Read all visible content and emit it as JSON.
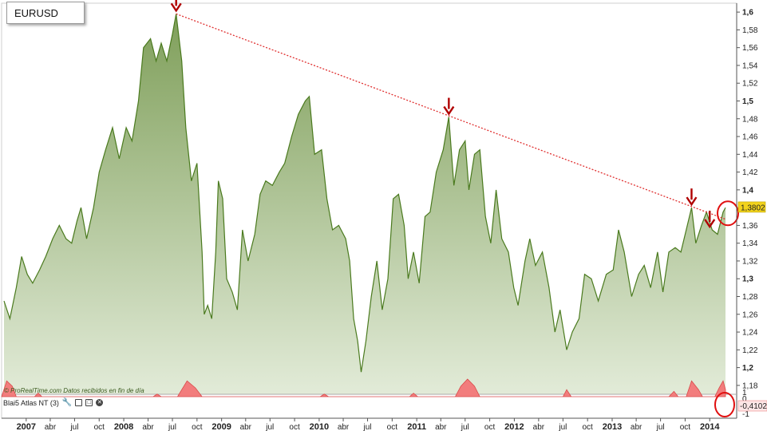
{
  "symbol": "EURUSD",
  "credit": "© ProRealTime.com  Datos recibidos en fin de día",
  "indicator": {
    "label": "Blai5 Atlas NT (3)",
    "value_label": "-0,4102",
    "axis_labels": [
      "1",
      "0",
      "-1"
    ],
    "icons": [
      "wrench-icon",
      "window-icon",
      "maximize-icon",
      "close-icon"
    ]
  },
  "chart_data": {
    "type": "area",
    "title": "EURUSD",
    "last_value_label": "1,3802",
    "colors": {
      "area_top": "#7f9f5a",
      "area_bottom": "#e2ebd8",
      "line": "#4a7a1e",
      "trendline": "#e03030",
      "arrow": "#b00000",
      "circle": "#e01010",
      "indicator_fill": "#f27d7d",
      "value_badge": "#f2d31b"
    },
    "ylim": [
      1.17,
      1.61
    ],
    "y_ticks": [
      {
        "v": 1.6,
        "label": "1,6",
        "bold": true
      },
      {
        "v": 1.58,
        "label": "1,58"
      },
      {
        "v": 1.56,
        "label": "1,56"
      },
      {
        "v": 1.54,
        "label": "1,54"
      },
      {
        "v": 1.52,
        "label": "1,52"
      },
      {
        "v": 1.5,
        "label": "1,5",
        "bold": true
      },
      {
        "v": 1.48,
        "label": "1,48"
      },
      {
        "v": 1.46,
        "label": "1,46"
      },
      {
        "v": 1.44,
        "label": "1,44"
      },
      {
        "v": 1.42,
        "label": "1,42"
      },
      {
        "v": 1.4,
        "label": "1,4",
        "bold": true
      },
      {
        "v": 1.36,
        "label": "1,36"
      },
      {
        "v": 1.34,
        "label": "1,34"
      },
      {
        "v": 1.32,
        "label": "1,32"
      },
      {
        "v": 1.3,
        "label": "1,3",
        "bold": true
      },
      {
        "v": 1.28,
        "label": "1,28"
      },
      {
        "v": 1.26,
        "label": "1,26"
      },
      {
        "v": 1.24,
        "label": "1,24"
      },
      {
        "v": 1.22,
        "label": "1,22"
      },
      {
        "v": 1.2,
        "label": "1,2",
        "bold": true
      },
      {
        "v": 1.18,
        "label": "1,18"
      }
    ],
    "x_range": [
      "2006-10",
      "2014-03"
    ],
    "x_ticks": [
      {
        "date": "2007-01",
        "label": "2007",
        "bold": true
      },
      {
        "date": "2007-04",
        "label": "abr"
      },
      {
        "date": "2007-07",
        "label": "jul"
      },
      {
        "date": "2007-10",
        "label": "oct"
      },
      {
        "date": "2008-01",
        "label": "2008",
        "bold": true
      },
      {
        "date": "2008-04",
        "label": "abr"
      },
      {
        "date": "2008-07",
        "label": "jul"
      },
      {
        "date": "2008-10",
        "label": "oct"
      },
      {
        "date": "2009-01",
        "label": "2009",
        "bold": true
      },
      {
        "date": "2009-04",
        "label": "abr"
      },
      {
        "date": "2009-07",
        "label": "jul"
      },
      {
        "date": "2009-10",
        "label": "oct"
      },
      {
        "date": "2010-01",
        "label": "2010",
        "bold": true
      },
      {
        "date": "2010-04",
        "label": "abr"
      },
      {
        "date": "2010-07",
        "label": "jul"
      },
      {
        "date": "2010-10",
        "label": "oct"
      },
      {
        "date": "2011-01",
        "label": "2011",
        "bold": true
      },
      {
        "date": "2011-04",
        "label": "abr"
      },
      {
        "date": "2011-07",
        "label": "jul"
      },
      {
        "date": "2011-10",
        "label": "oct"
      },
      {
        "date": "2012-01",
        "label": "2012",
        "bold": true
      },
      {
        "date": "2012-04",
        "label": "abr"
      },
      {
        "date": "2012-07",
        "label": "jul"
      },
      {
        "date": "2012-10",
        "label": "oct"
      },
      {
        "date": "2013-01",
        "label": "2013",
        "bold": true
      },
      {
        "date": "2013-04",
        "label": "abr"
      },
      {
        "date": "2013-07",
        "label": "jul"
      },
      {
        "date": "2013-10",
        "label": "oct"
      },
      {
        "date": "2014-01",
        "label": "2014",
        "bold": true
      }
    ],
    "series": [
      {
        "points": [
          [
            "2006-10-10",
            1.275
          ],
          [
            "2006-11-01",
            1.255
          ],
          [
            "2006-11-25",
            1.29
          ],
          [
            "2006-12-15",
            1.325
          ],
          [
            "2007-01-05",
            1.305
          ],
          [
            "2007-01-25",
            1.295
          ],
          [
            "2007-02-20",
            1.31
          ],
          [
            "2007-03-15",
            1.325
          ],
          [
            "2007-04-10",
            1.345
          ],
          [
            "2007-05-05",
            1.36
          ],
          [
            "2007-05-30",
            1.345
          ],
          [
            "2007-06-20",
            1.34
          ],
          [
            "2007-07-10",
            1.365
          ],
          [
            "2007-07-25",
            1.38
          ],
          [
            "2007-08-15",
            1.345
          ],
          [
            "2007-09-10",
            1.38
          ],
          [
            "2007-10-01",
            1.42
          ],
          [
            "2007-10-25",
            1.445
          ],
          [
            "2007-11-20",
            1.47
          ],
          [
            "2007-12-15",
            1.435
          ],
          [
            "2008-01-10",
            1.47
          ],
          [
            "2008-02-01",
            1.455
          ],
          [
            "2008-02-25",
            1.5
          ],
          [
            "2008-03-15",
            1.56
          ],
          [
            "2008-04-10",
            1.57
          ],
          [
            "2008-05-01",
            1.545
          ],
          [
            "2008-05-20",
            1.565
          ],
          [
            "2008-06-10",
            1.545
          ],
          [
            "2008-07-01",
            1.575
          ],
          [
            "2008-07-15",
            1.598
          ],
          [
            "2008-08-05",
            1.545
          ],
          [
            "2008-08-20",
            1.47
          ],
          [
            "2008-09-10",
            1.41
          ],
          [
            "2008-10-01",
            1.43
          ],
          [
            "2008-10-20",
            1.33
          ],
          [
            "2008-10-28",
            1.26
          ],
          [
            "2008-11-10",
            1.27
          ],
          [
            "2008-11-25",
            1.255
          ],
          [
            "2008-12-10",
            1.33
          ],
          [
            "2008-12-20",
            1.41
          ],
          [
            "2009-01-05",
            1.39
          ],
          [
            "2009-01-20",
            1.3
          ],
          [
            "2009-02-10",
            1.285
          ],
          [
            "2009-03-01",
            1.265
          ],
          [
            "2009-03-20",
            1.355
          ],
          [
            "2009-04-10",
            1.32
          ],
          [
            "2009-05-05",
            1.35
          ],
          [
            "2009-05-25",
            1.395
          ],
          [
            "2009-06-15",
            1.41
          ],
          [
            "2009-07-10",
            1.405
          ],
          [
            "2009-08-05",
            1.42
          ],
          [
            "2009-08-25",
            1.43
          ],
          [
            "2009-09-20",
            1.46
          ],
          [
            "2009-10-15",
            1.485
          ],
          [
            "2009-11-10",
            1.5
          ],
          [
            "2009-11-25",
            1.505
          ],
          [
            "2009-12-15",
            1.44
          ],
          [
            "2010-01-10",
            1.445
          ],
          [
            "2010-01-30",
            1.39
          ],
          [
            "2010-02-20",
            1.355
          ],
          [
            "2010-03-15",
            1.36
          ],
          [
            "2010-04-10",
            1.345
          ],
          [
            "2010-04-25",
            1.32
          ],
          [
            "2010-05-10",
            1.255
          ],
          [
            "2010-05-25",
            1.23
          ],
          [
            "2010-06-07",
            1.195
          ],
          [
            "2010-06-25",
            1.23
          ],
          [
            "2010-07-15",
            1.28
          ],
          [
            "2010-08-05",
            1.32
          ],
          [
            "2010-08-25",
            1.265
          ],
          [
            "2010-09-15",
            1.3
          ],
          [
            "2010-10-05",
            1.39
          ],
          [
            "2010-10-25",
            1.395
          ],
          [
            "2010-11-15",
            1.36
          ],
          [
            "2010-11-30",
            1.3
          ],
          [
            "2010-12-20",
            1.33
          ],
          [
            "2011-01-10",
            1.295
          ],
          [
            "2011-02-01",
            1.37
          ],
          [
            "2011-02-20",
            1.375
          ],
          [
            "2011-03-15",
            1.42
          ],
          [
            "2011-04-10",
            1.445
          ],
          [
            "2011-05-01",
            1.482
          ],
          [
            "2011-05-20",
            1.405
          ],
          [
            "2011-06-10",
            1.445
          ],
          [
            "2011-07-01",
            1.455
          ],
          [
            "2011-07-15",
            1.4
          ],
          [
            "2011-08-05",
            1.44
          ],
          [
            "2011-08-25",
            1.445
          ],
          [
            "2011-09-15",
            1.37
          ],
          [
            "2011-10-05",
            1.34
          ],
          [
            "2011-10-25",
            1.4
          ],
          [
            "2011-11-15",
            1.345
          ],
          [
            "2011-12-10",
            1.33
          ],
          [
            "2011-12-30",
            1.29
          ],
          [
            "2012-01-15",
            1.27
          ],
          [
            "2012-02-10",
            1.32
          ],
          [
            "2012-02-28",
            1.345
          ],
          [
            "2012-03-20",
            1.315
          ],
          [
            "2012-04-15",
            1.33
          ],
          [
            "2012-05-10",
            1.29
          ],
          [
            "2012-06-01",
            1.24
          ],
          [
            "2012-06-20",
            1.265
          ],
          [
            "2012-07-15",
            1.22
          ],
          [
            "2012-08-05",
            1.24
          ],
          [
            "2012-08-30",
            1.255
          ],
          [
            "2012-09-20",
            1.305
          ],
          [
            "2012-10-15",
            1.3
          ],
          [
            "2012-11-10",
            1.275
          ],
          [
            "2012-12-10",
            1.305
          ],
          [
            "2013-01-05",
            1.31
          ],
          [
            "2013-01-25",
            1.355
          ],
          [
            "2013-02-15",
            1.33
          ],
          [
            "2013-03-15",
            1.28
          ],
          [
            "2013-04-10",
            1.305
          ],
          [
            "2013-05-01",
            1.315
          ],
          [
            "2013-05-25",
            1.29
          ],
          [
            "2013-06-20",
            1.33
          ],
          [
            "2013-07-10",
            1.285
          ],
          [
            "2013-08-01",
            1.33
          ],
          [
            "2013-08-25",
            1.335
          ],
          [
            "2013-09-15",
            1.33
          ],
          [
            "2013-10-05",
            1.355
          ],
          [
            "2013-10-25",
            1.38
          ],
          [
            "2013-11-10",
            1.34
          ],
          [
            "2013-12-01",
            1.36
          ],
          [
            "2013-12-20",
            1.375
          ],
          [
            "2014-01-10",
            1.355
          ],
          [
            "2014-01-30",
            1.35
          ],
          [
            "2014-02-20",
            1.375
          ],
          [
            "2014-03-01",
            1.38
          ]
        ]
      }
    ],
    "trendline": [
      [
        "2008-07-15",
        1.598
      ],
      [
        "2014-03-01",
        1.367
      ]
    ],
    "arrows": [
      "2008-07-15",
      "2011-05-01",
      "2013-10-25",
      "2014-01-01"
    ],
    "circle_at": [
      "2014-03-01",
      1.37
    ],
    "indicator_series": [
      [
        "2006-10-01",
        0
      ],
      [
        "2006-10-20",
        -0.9
      ],
      [
        "2006-11-10",
        -0.6
      ],
      [
        "2006-11-25",
        0
      ],
      [
        "2007-02-01",
        0
      ],
      [
        "2007-02-15",
        -0.2
      ],
      [
        "2007-03-01",
        0
      ],
      [
        "2008-04-20",
        0
      ],
      [
        "2008-05-05",
        -0.15
      ],
      [
        "2008-05-20",
        0
      ],
      [
        "2008-07-20",
        0
      ],
      [
        "2008-08-25",
        -0.9
      ],
      [
        "2008-09-25",
        -0.5
      ],
      [
        "2008-10-20",
        0
      ],
      [
        "2010-01-05",
        0
      ],
      [
        "2010-01-20",
        -0.15
      ],
      [
        "2010-02-05",
        0
      ],
      [
        "2010-12-05",
        0
      ],
      [
        "2010-12-20",
        -0.2
      ],
      [
        "2011-01-05",
        0
      ],
      [
        "2011-05-25",
        0
      ],
      [
        "2011-06-15",
        -0.6
      ],
      [
        "2011-07-10",
        -1.0
      ],
      [
        "2011-08-05",
        -0.6
      ],
      [
        "2011-08-25",
        0
      ],
      [
        "2012-07-01",
        0
      ],
      [
        "2012-07-15",
        -0.4
      ],
      [
        "2012-08-01",
        0
      ],
      [
        "2013-08-01",
        0
      ],
      [
        "2013-08-20",
        -0.3
      ],
      [
        "2013-09-05",
        0
      ],
      [
        "2013-10-05",
        0
      ],
      [
        "2013-10-25",
        -0.9
      ],
      [
        "2013-11-20",
        -0.4
      ],
      [
        "2013-12-05",
        0
      ],
      [
        "2014-01-20",
        0
      ],
      [
        "2014-02-05",
        -0.5
      ],
      [
        "2014-02-20",
        -0.9
      ],
      [
        "2014-03-01",
        -0.41
      ]
    ]
  }
}
